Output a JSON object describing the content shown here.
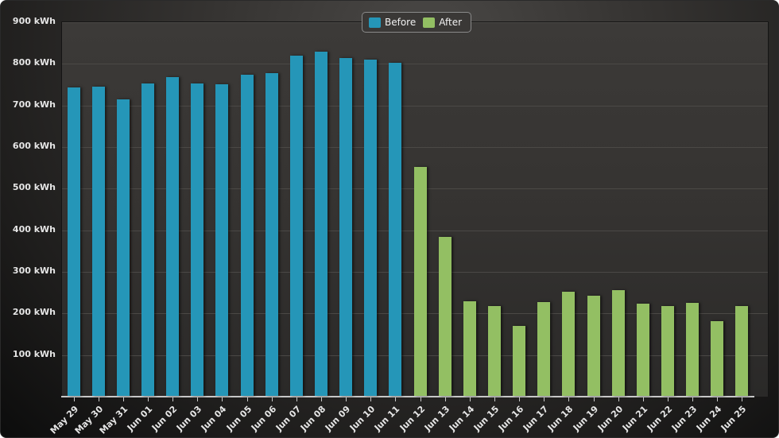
{
  "chart_data": {
    "type": "bar",
    "title": "",
    "xlabel": "",
    "ylabel": "",
    "unit": "kWh",
    "ylim": [
      0,
      900
    ],
    "yticks": [
      "100 kWh",
      "200 kWh",
      "300 kWh",
      "400 kWh",
      "500 kWh",
      "600 kWh",
      "700 kWh",
      "800 kWh",
      "900 kWh"
    ],
    "grid": true,
    "legend_position": "top-center",
    "categories": [
      "May 29",
      "May 30",
      "May 31",
      "Jun 01",
      "Jun 02",
      "Jun 03",
      "Jun 04",
      "Jun 05",
      "Jun 06",
      "Jun 07",
      "Jun 08",
      "Jun 09",
      "Jun 10",
      "Jun 11",
      "Jun 12",
      "Jun 13",
      "Jun 14",
      "Jun 15",
      "Jun 16",
      "Jun 17",
      "Jun 18",
      "Jun 19",
      "Jun 20",
      "Jun 21",
      "Jun 22",
      "Jun 23",
      "Jun 24",
      "Jun 25"
    ],
    "series": [
      {
        "name": "Before",
        "color": "#2596b8",
        "values": [
          742,
          744,
          713,
          751,
          766,
          751,
          749,
          772,
          776,
          818,
          828,
          812,
          809,
          801,
          null,
          null,
          null,
          null,
          null,
          null,
          null,
          null,
          null,
          null,
          null,
          null,
          null,
          null
        ]
      },
      {
        "name": "After",
        "color": "#93bf63",
        "values": [
          null,
          null,
          null,
          null,
          null,
          null,
          null,
          null,
          null,
          null,
          null,
          null,
          null,
          null,
          551,
          383,
          228,
          216,
          168,
          226,
          251,
          241,
          255,
          222,
          216,
          224,
          180,
          216
        ]
      }
    ]
  },
  "legend": {
    "items": [
      {
        "label": "Before",
        "color": "#2596b8"
      },
      {
        "label": "After",
        "color": "#93bf63"
      }
    ]
  }
}
